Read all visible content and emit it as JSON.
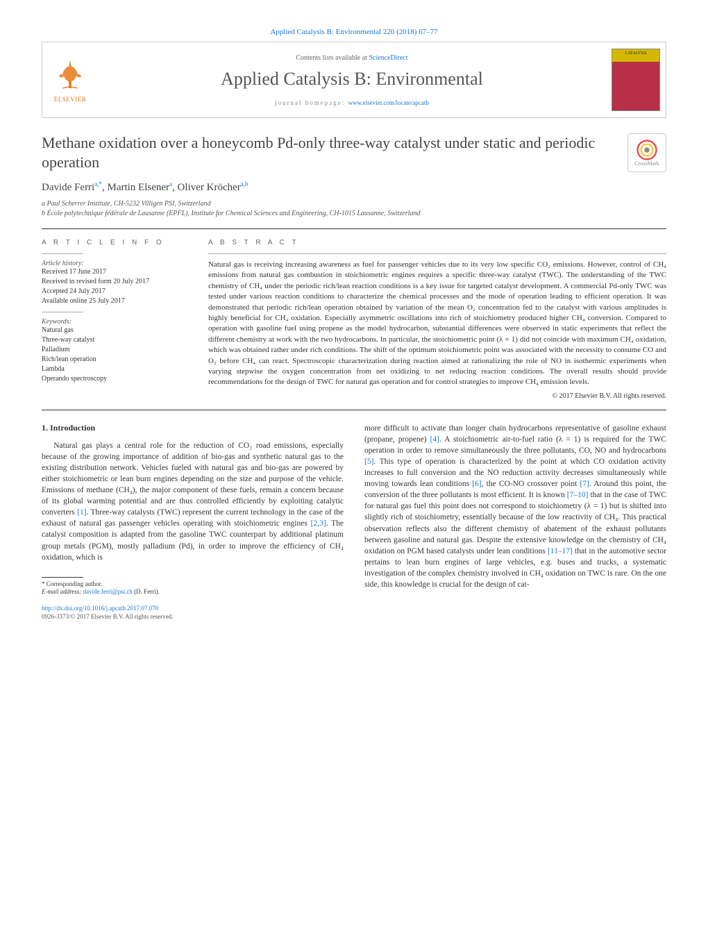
{
  "header": {
    "citation": "Applied Catalysis B: Environmental 220 (2018) 67–77",
    "contents_line_prefix": "Contents lists available at ",
    "contents_line_link": "ScienceDirect",
    "journal_name": "Applied Catalysis B: Environmental",
    "homepage_prefix": "journal homepage: ",
    "homepage_link": "www.elsevier.com/locate/apcatb",
    "elsevier_label": "ELSEVIER",
    "cover_label": "CATALYSIS"
  },
  "article": {
    "title": "Methane oxidation over a honeycomb Pd-only three-way catalyst under static and periodic operation",
    "crossmark_label": "CrossMark",
    "authors_html": "Davide Ferri<sup>a,*</sup>, Martin Elsener<sup>a</sup>, Oliver Kröcher<sup>a,b</sup>",
    "affil_a": "a Paul Scherrer Institute, CH-5232 Villigen PSI, Switzerland",
    "affil_b": "b École polytechnique fédérale de Lausanne (EPFL), Institute for Chemical Sciences and Engineering, CH-1015 Lausanne, Switzerland"
  },
  "info": {
    "section_label": "A R T I C L E   I N F O",
    "history_label": "Article history:",
    "received": "Received 17 June 2017",
    "revised": "Received in revised form 20 July 2017",
    "accepted": "Accepted 24 July 2017",
    "online": "Available online 25 July 2017",
    "keywords_label": "Keywords:",
    "keywords": [
      "Natural gas",
      "Three-way catalyst",
      "Palladium",
      "Rich/lean operation",
      "Lambda",
      "Operando spectroscopy"
    ]
  },
  "abstract": {
    "label": "A B S T R A C T",
    "text": "Natural gas is receiving increasing awareness as fuel for passenger vehicles due to its very low specific CO₂ emissions. However, control of CH₄ emissions from natural gas combustion in stoichiometric engines requires a specific three-way catalyst (TWC). The understanding of the TWC chemistry of CH₄ under the periodic rich/lean reaction conditions is a key issue for targeted catalyst development. A commercial Pd-only TWC was tested under various reaction conditions to characterize the chemical processes and the mode of operation leading to efficient operation. It was demonstrated that periodic rich/lean operation obtained by variation of the mean O₂ concentration fed to the catalyst with various amplitudes is highly beneficial for CH₄ oxidation. Especially asymmetric oscillations into rich of stoichiometry produced higher CH₄ conversion. Compared to operation with gasoline fuel using propene as the model hydrocarbon, substantial differences were observed in static experiments that reflect the different chemistry at work with the two hydrocarbons. In particular, the stoichiometric point (λ = 1) did not coincide with maximum CH₄ oxidation, which was obtained rather under rich conditions. The shift of the optimum stoichiometric point was associated with the necessity to consume CO and O₂ before CH₄ can react. Spectroscopic characterization during reaction aimed at rationalizing the role of NO in isothermic experiments when varying stepwise the oxygen concentration from net oxidizing to net reducing reaction conditions. The overall results should provide recommendations for the design of TWC for natural gas operation and for control strategies to improve CH₄ emission levels.",
    "copyright": "© 2017 Elsevier B.V. All rights reserved."
  },
  "intro": {
    "heading": "1.  Introduction",
    "col1": "Natural gas plays a central role for the reduction of CO₂ road emissions, especially because of the growing importance of addition of bio-gas and synthetic natural gas to the existing distribution network. Vehicles fueled with natural gas and bio-gas are powered by either stoichiometric or lean burn engines depending on the size and purpose of the vehicle. Emissions of methane (CH₄), the major component of these fuels, remain a concern because of its global warming potential and are thus controlled efficiently by exploiting catalytic converters [1]. Three-way catalysts (TWC) represent the current technology in the case of the exhaust of natural gas passenger vehicles operating with stoichiometric engines [2,3]. The catalyst composition is adapted from the gasoline TWC counterpart by additional platinum group metals (PGM), mostly palladium (Pd), in order to improve the efficiency of CH₄ oxidation, which is",
    "col2": "more difficult to activate than longer chain hydrocarbons representative of gasoline exhaust (propane, propene) [4]. A stoichiometric air-to-fuel ratio (λ = 1) is required for the TWC operation in order to remove simultaneously the three pollutants, CO, NO and hydrocarbons [5]. This type of operation is characterized by the point at which CO oxidation activity increases to full conversion and the NO reduction activity decreases simultaneously while moving towards lean conditions [6], the CO-NO crossover point [7]. Around this point, the conversion of the three pollutants is most efficient. It is known [7–10] that in the case of TWC for natural gas fuel this point does not correspond to stoichiometry (λ = 1) but is shifted into slightly rich of stoichiometry, essentially because of the low reactivity of CH₄. This practical observation reflects also the different chemistry of abatement of the exhaust pollutants between gasoline and natural gas. Despite the extensive knowledge on the chemistry of CH₄ oxidation on PGM based catalysts under lean conditions [11–17] that in the automotive sector pertains to lean burn engines of large vehicles, e.g. buses and trucks, a systematic investigation of the complex chemistry involved in CH₄ oxidation on TWC is rare. On the one side, this knowledge is crucial for the design of cat-"
  },
  "footnote": {
    "corresp_label": "* Corresponding author.",
    "email_label": "E-mail address: ",
    "email": "davide.ferri@psi.ch",
    "email_name": " (D. Ferri)."
  },
  "footer": {
    "doi": "http://dx.doi.org/10.1016/j.apcatb.2017.07.070",
    "issn": "0926-3373/© 2017 Elsevier B.V. All rights reserved."
  },
  "colors": {
    "link": "#1976d2",
    "elsevier": "#e67817",
    "cover_bg": "#b73048",
    "cover_top": "#d4b800",
    "crossmark_outer": "#ef3e42",
    "crossmark_inner": "#ffc629"
  }
}
